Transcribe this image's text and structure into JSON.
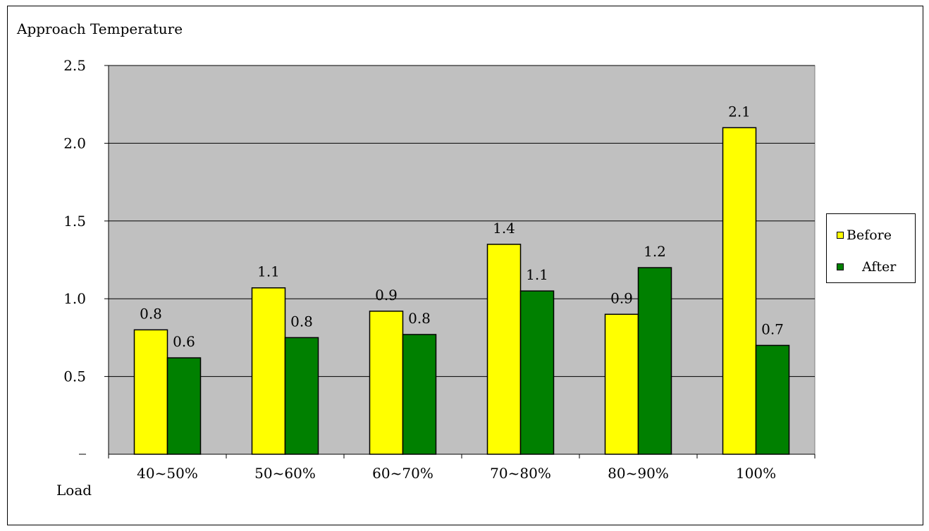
{
  "chart_data": {
    "type": "bar",
    "ylabel": "Approach Temperature",
    "xlabel": "Load",
    "categories": [
      "40~50%",
      "50~60%",
      "60~70%",
      "70~80%",
      "80~90%",
      "100%"
    ],
    "series": [
      {
        "name": "Before",
        "color": "#FFFF00",
        "values": [
          0.8,
          1.07,
          0.92,
          1.35,
          0.9,
          2.1
        ],
        "labels": [
          "0.8",
          "1.1",
          "0.9",
          "1.4",
          "0.9",
          "2.1"
        ]
      },
      {
        "name": "After",
        "color": "#008000",
        "values": [
          0.62,
          0.75,
          0.77,
          1.05,
          1.2,
          0.7
        ],
        "labels": [
          "0.6",
          "0.8",
          "0.8",
          "1.1",
          "1.2",
          "0.7"
        ]
      }
    ],
    "ylim": [
      0,
      2.5
    ],
    "yticks": [
      0.5,
      1.0,
      1.5,
      2.0,
      2.5
    ],
    "ytick_labels": [
      "0.5",
      "1.0",
      "1.5",
      "2.0",
      "2.5"
    ],
    "grid": true,
    "legend": "right",
    "plot_background": "#C0C0C0"
  }
}
